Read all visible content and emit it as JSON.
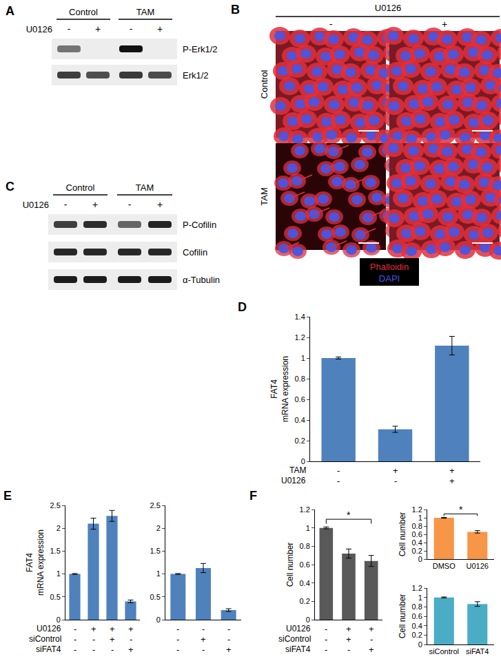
{
  "blot_panels": [
    {
      "panel": "A",
      "groups": [
        "Control",
        "TAM"
      ],
      "treatment": "U0126",
      "lanes": [
        "-",
        "+",
        "-",
        "+"
      ],
      "rows": [
        "P-Erk1/2",
        "Erk1/2"
      ]
    },
    {
      "panel": "C",
      "groups": [
        "Control",
        "TAM"
      ],
      "treatment": "U0126",
      "lanes": [
        "-",
        "+",
        "-",
        "+"
      ],
      "rows": [
        "P-Cofilin",
        "Cofilin",
        "α-Tubulin"
      ]
    }
  ],
  "image_panel": {
    "panel": "B",
    "treatment": "U0126",
    "columns": [
      "-",
      "+"
    ],
    "rows": [
      "Control",
      "TAM"
    ],
    "stains": [
      {
        "name": "Phalloidin",
        "color": "#e0303c"
      },
      {
        "name": "DAPI",
        "color": "#4a55e0"
      }
    ]
  },
  "chart_data": [
    {
      "panel": "D",
      "type": "bar",
      "categories": [
        null,
        null,
        null
      ],
      "values": [
        1.0,
        0.31,
        1.12
      ],
      "errors": [
        0.01,
        0.03,
        0.09
      ],
      "color": "#4f81bd",
      "ylabel": "FAT4\nmRNA expression",
      "ylim": [
        0,
        1.4
      ],
      "yticks": [
        0,
        0.2,
        0.4,
        0.6,
        0.8,
        1,
        1.2,
        1.4
      ],
      "tick_labels": "y",
      "conditions": [
        {
          "name": "TAM",
          "values": [
            "-",
            "+",
            "+"
          ]
        },
        {
          "name": "U0126",
          "values": [
            "-",
            "-",
            "+"
          ]
        }
      ]
    },
    {
      "panel": "E",
      "type": "bar",
      "categories": [
        null,
        null,
        null,
        null
      ],
      "values": [
        1.0,
        2.1,
        2.27,
        0.4
      ],
      "errors": [
        0.01,
        0.12,
        0.12,
        0.03
      ],
      "color": "#4f81bd",
      "ylabel": "FAT4\nmRNA expression",
      "ylim": [
        0,
        2.5
      ],
      "yticks": [
        0,
        0.5,
        1,
        1.5,
        2,
        2.5
      ],
      "tick_labels": "y",
      "conditions": [
        {
          "name": "U0126",
          "values": [
            "-",
            "+",
            "+",
            "+"
          ]
        },
        {
          "name": "siControl",
          "values": [
            "-",
            "-",
            "+",
            "-"
          ]
        },
        {
          "name": "siFAT4",
          "values": [
            "-",
            "-",
            "-",
            "+"
          ]
        }
      ]
    },
    {
      "type": "bar",
      "categories": [
        null,
        null,
        null
      ],
      "values": [
        1.0,
        1.13,
        0.21
      ],
      "errors": [
        0.01,
        0.1,
        0.03
      ],
      "color": "#4f81bd",
      "ylim": [
        0,
        2.5
      ],
      "yticks": [
        0,
        0.5,
        1,
        1.5,
        2,
        2.5
      ],
      "tick_labels": "y",
      "conditions": [
        {
          "values": [
            "-",
            "-",
            "-"
          ]
        },
        {
          "values": [
            "-",
            "+",
            "-"
          ]
        },
        {
          "values": [
            "-",
            "-",
            "+"
          ]
        }
      ]
    },
    {
      "panel": "F",
      "type": "bar",
      "categories": [
        null,
        null,
        null
      ],
      "values": [
        1.0,
        0.72,
        0.64
      ],
      "errors": [
        0.01,
        0.05,
        0.06
      ],
      "color": "#595959",
      "ylabel": "Cell number",
      "ylim": [
        0,
        1.2
      ],
      "yticks": [
        0,
        0.2,
        0.4,
        0.6,
        0.8,
        1,
        1.2
      ],
      "tick_labels": "y",
      "annotations": [
        {
          "text": "*",
          "from": 0,
          "to": 2
        }
      ],
      "conditions": [
        {
          "name": "U0126",
          "values": [
            "-",
            "+",
            "+"
          ]
        },
        {
          "name": "siControl",
          "values": [
            "-",
            "+",
            "-"
          ]
        },
        {
          "name": "siFAT4",
          "values": [
            "-",
            "-",
            "+"
          ]
        }
      ]
    },
    {
      "type": "bar",
      "categories": [
        "DMSO",
        "U0126"
      ],
      "values": [
        1.0,
        0.66
      ],
      "errors": [
        0.01,
        0.03
      ],
      "color": "#f79646",
      "ylabel": "Cell number",
      "ylim": [
        0,
        1.2
      ],
      "yticks": [
        0,
        0.2,
        0.4,
        0.6,
        0.8,
        1,
        1.2
      ],
      "annotations": [
        {
          "text": "*",
          "from": 0,
          "to": 1
        }
      ]
    },
    {
      "type": "bar",
      "categories": [
        "siControl",
        "siFAT4"
      ],
      "values": [
        1.0,
        0.86
      ],
      "errors": [
        0.01,
        0.05
      ],
      "color": "#4bacc6",
      "ylabel": "Cell number",
      "ylim": [
        0,
        1.2
      ],
      "yticks": [
        0,
        0.2,
        0.4,
        0.6,
        0.8,
        1,
        1.2
      ]
    }
  ]
}
